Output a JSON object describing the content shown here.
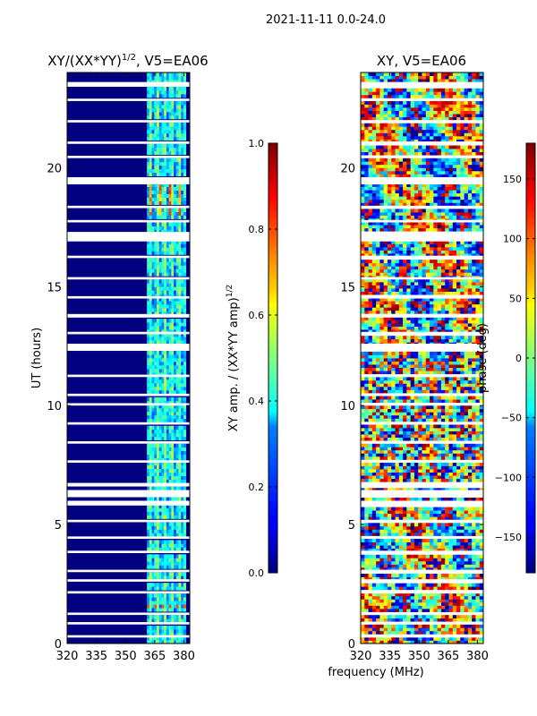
{
  "figure": {
    "suptitle": "2021-11-11 0.0-24.0",
    "shared_xlabel": "frequency (MHz)"
  },
  "chart_data": [
    {
      "type": "heatmap",
      "title": "XY/(XX*YY)",
      "title_exponent": "1/2",
      "title_suffix": ", V5=EA06",
      "xlabel": "",
      "ylabel": "UT (hours)",
      "xlim": [
        320,
        383
      ],
      "ylim": [
        0,
        24
      ],
      "xticks": [
        320,
        335,
        350,
        365,
        380
      ],
      "yticks": [
        0,
        5,
        10,
        15,
        20
      ],
      "colorbar": {
        "label": "XY amp. / (XX*YY amp)",
        "label_exponent": "1/2",
        "range": [
          0.0,
          1.0
        ],
        "ticks": [
          "0.0",
          "0.2",
          "0.4",
          "0.6",
          "0.8",
          "1.0"
        ],
        "tick_values": [
          0.0,
          0.2,
          0.4,
          0.6,
          0.8,
          1.0
        ],
        "colormap": "jet"
      },
      "background_value": 0.0,
      "bright_band_mhz": [
        361,
        381
      ],
      "band_mean_value": 0.35,
      "flagged_hours": [
        [
          0.25,
          0.35
        ],
        [
          0.8,
          0.9
        ],
        [
          1.2,
          1.3
        ],
        [
          2.1,
          2.2
        ],
        [
          2.6,
          2.7
        ],
        [
          3.0,
          3.1
        ],
        [
          3.8,
          3.9
        ],
        [
          4.4,
          4.5
        ],
        [
          5.1,
          5.2
        ],
        [
          5.8,
          6.0
        ],
        [
          6.15,
          6.45
        ],
        [
          6.6,
          6.75
        ],
        [
          7.6,
          7.7
        ],
        [
          8.4,
          8.5
        ],
        [
          9.2,
          9.3
        ],
        [
          10.0,
          10.1
        ],
        [
          10.4,
          10.5
        ],
        [
          11.2,
          11.3
        ],
        [
          12.3,
          12.6
        ],
        [
          13.0,
          13.1
        ],
        [
          13.7,
          13.85
        ],
        [
          14.5,
          14.6
        ],
        [
          15.3,
          15.4
        ],
        [
          16.2,
          16.3
        ],
        [
          16.9,
          17.3
        ],
        [
          17.7,
          17.8
        ],
        [
          18.3,
          18.4
        ],
        [
          19.3,
          19.6
        ],
        [
          20.4,
          20.5
        ],
        [
          21.0,
          21.1
        ],
        [
          21.9,
          22.0
        ],
        [
          22.8,
          22.9
        ],
        [
          23.4,
          23.6
        ]
      ]
    },
    {
      "type": "heatmap",
      "title": "XY, V5=EA06",
      "xlabel": "frequency (MHz)",
      "ylabel": "",
      "xlim": [
        320,
        383
      ],
      "ylim": [
        0,
        24
      ],
      "xticks": [
        320,
        335,
        350,
        365,
        380
      ],
      "yticks": [
        0,
        5,
        10,
        15,
        20
      ],
      "colorbar": {
        "label": "phase (deg)",
        "range": [
          -180,
          180
        ],
        "ticks": [
          "−150",
          "−100",
          "−50",
          "0",
          "50",
          "100",
          "150"
        ],
        "tick_values": [
          -150,
          -100,
          -50,
          0,
          50,
          100,
          150
        ],
        "colormap": "jet"
      },
      "flagged_hours": [
        [
          0.25,
          0.35
        ],
        [
          0.8,
          0.9
        ],
        [
          1.2,
          1.3
        ],
        [
          2.1,
          2.2
        ],
        [
          2.6,
          2.7
        ],
        [
          3.0,
          3.1
        ],
        [
          3.8,
          3.9
        ],
        [
          4.4,
          4.5
        ],
        [
          5.1,
          5.2
        ],
        [
          5.8,
          6.0
        ],
        [
          6.15,
          6.45
        ],
        [
          6.6,
          6.75
        ],
        [
          7.6,
          7.7
        ],
        [
          8.4,
          8.5
        ],
        [
          9.2,
          9.3
        ],
        [
          10.0,
          10.1
        ],
        [
          10.4,
          10.5
        ],
        [
          11.2,
          11.3
        ],
        [
          12.3,
          12.6
        ],
        [
          13.0,
          13.1
        ],
        [
          13.7,
          13.85
        ],
        [
          14.5,
          14.6
        ],
        [
          15.3,
          15.4
        ],
        [
          16.2,
          16.3
        ],
        [
          16.9,
          17.3
        ],
        [
          17.7,
          17.8
        ],
        [
          18.3,
          18.4
        ],
        [
          19.3,
          19.6
        ],
        [
          20.4,
          20.5
        ],
        [
          21.0,
          21.1
        ],
        [
          21.9,
          22.0
        ],
        [
          22.8,
          22.9
        ],
        [
          23.4,
          23.6
        ]
      ]
    }
  ]
}
